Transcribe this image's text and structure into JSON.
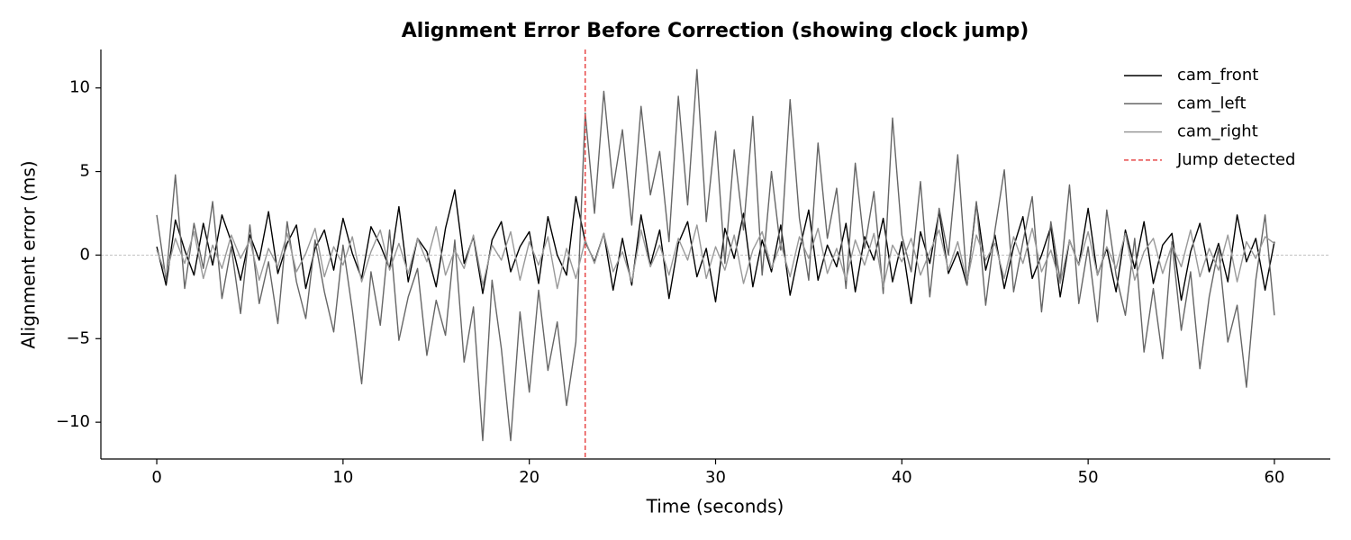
{
  "chart_data": {
    "type": "line",
    "title": "Alignment Error Before Correction (showing clock jump)",
    "x_label": "Time (seconds)",
    "y_label": "Alignment error (ms)",
    "x": [
      0,
      0.5,
      1,
      1.5,
      2,
      2.5,
      3,
      3.5,
      4,
      4.5,
      5,
      5.5,
      6,
      6.5,
      7,
      7.5,
      8,
      8.5,
      9,
      9.5,
      10,
      10.5,
      11,
      11.5,
      12,
      12.5,
      13,
      13.5,
      14,
      14.5,
      15,
      15.5,
      16,
      16.5,
      17,
      17.5,
      18,
      18.5,
      19,
      19.5,
      20,
      20.5,
      21,
      21.5,
      22,
      22.5,
      23,
      23.5,
      24,
      24.5,
      25,
      25.5,
      26,
      26.5,
      27,
      27.5,
      28,
      28.5,
      29,
      29.5,
      30,
      30.5,
      31,
      31.5,
      32,
      32.5,
      33,
      33.5,
      34,
      34.5,
      35,
      35.5,
      36,
      36.5,
      37,
      37.5,
      38,
      38.5,
      39,
      39.5,
      40,
      40.5,
      41,
      41.5,
      42,
      42.5,
      43,
      43.5,
      44,
      44.5,
      45,
      45.5,
      46,
      46.5,
      47,
      47.5,
      48,
      48.5,
      49,
      49.5,
      50,
      50.5,
      51,
      51.5,
      52,
      52.5,
      53,
      53.5,
      54,
      54.5,
      55,
      55.5,
      56,
      56.5,
      57,
      57.5,
      58,
      58.5,
      59,
      59.5,
      60
    ],
    "series": [
      {
        "name": "cam_front",
        "color": "#000000",
        "values": [
          0.5,
          -1.8,
          2.1,
          0.3,
          -1.2,
          1.9,
          -0.6,
          2.4,
          0.8,
          -1.5,
          1.2,
          -0.3,
          2.6,
          -1.1,
          0.7,
          1.8,
          -2.0,
          0.4,
          1.5,
          -0.9,
          2.2,
          0.1,
          -1.4,
          1.7,
          0.6,
          -0.8,
          2.9,
          -1.6,
          1.0,
          0.2,
          -1.9,
          1.6,
          3.9,
          -0.5,
          1.1,
          -2.3,
          0.9,
          2.0,
          -1.0,
          0.5,
          1.4,
          -1.7,
          2.3,
          0.0,
          -1.2,
          3.5,
          0.8,
          -0.4,
          1.3,
          -2.1,
          1.0,
          -1.8,
          2.4,
          -0.6,
          1.5,
          -2.6,
          0.7,
          2.0,
          -1.3,
          0.4,
          -2.8,
          1.6,
          -0.2,
          2.5,
          -1.9,
          0.9,
          -1.0,
          1.8,
          -2.4,
          0.3,
          2.7,
          -1.5,
          0.6,
          -0.7,
          1.9,
          -2.2,
          1.1,
          -0.3,
          2.2,
          -1.6,
          0.8,
          -2.9,
          1.4,
          -0.5,
          2.6,
          -1.1,
          0.2,
          -1.8,
          3.1,
          -0.9,
          1.2,
          -2.0,
          0.5,
          2.3,
          -1.4,
          0.0,
          1.7,
          -2.5,
          0.9,
          -0.6,
          2.8,
          -1.2,
          0.4,
          -2.2,
          1.5,
          -0.8,
          2.0,
          -1.7,
          0.6,
          1.3,
          -2.7,
          0.2,
          1.9,
          -1.0,
          0.7,
          -1.6,
          2.4,
          -0.4,
          1.0,
          -2.1,
          0.8
        ]
      },
      {
        "name": "cam_left",
        "color": "#666666",
        "values": [
          2.4,
          -1.5,
          4.8,
          -2.0,
          1.9,
          -0.8,
          3.2,
          -2.6,
          0.5,
          -3.5,
          1.8,
          -2.9,
          -0.4,
          -4.1,
          2.0,
          -1.6,
          -3.8,
          0.9,
          -2.2,
          -4.6,
          0.6,
          -3.3,
          -7.7,
          -1.0,
          -4.2,
          1.5,
          -5.1,
          -2.5,
          -0.8,
          -6.0,
          -2.7,
          -4.8,
          0.9,
          -6.4,
          -3.1,
          -11.1,
          -1.5,
          -5.6,
          -11.1,
          -3.4,
          -8.2,
          -2.1,
          -6.9,
          -4.0,
          -9.0,
          -5.2,
          8.5,
          2.5,
          9.8,
          4.0,
          7.5,
          1.8,
          8.9,
          3.6,
          6.2,
          0.8,
          9.5,
          3.0,
          11.1,
          2.0,
          7.4,
          -0.5,
          6.3,
          1.5,
          8.3,
          -1.2,
          5.0,
          0.3,
          9.3,
          2.2,
          -1.5,
          6.7,
          1.0,
          4.0,
          -2.0,
          5.5,
          0.4,
          3.8,
          -2.3,
          8.2,
          1.2,
          -1.0,
          4.4,
          -2.5,
          2.8,
          0.0,
          6.0,
          -1.8,
          3.2,
          -3.0,
          1.5,
          5.1,
          -2.2,
          0.8,
          3.5,
          -3.4,
          2.0,
          -1.5,
          4.2,
          -2.9,
          0.5,
          -4.0,
          2.7,
          -1.2,
          -3.6,
          1.0,
          -5.8,
          -2.0,
          -6.2,
          0.8,
          -4.5,
          -1.0,
          -6.8,
          -2.5,
          0.4,
          -5.2,
          -3.0,
          -7.9,
          -1.5,
          2.4,
          -3.6
        ]
      },
      {
        "name": "cam_right",
        "color": "#999999",
        "values": [
          0.3,
          -1.2,
          1.0,
          -0.5,
          1.4,
          -1.4,
          0.6,
          -0.8,
          1.2,
          -0.2,
          0.9,
          -1.5,
          0.4,
          -0.7,
          1.3,
          -1.0,
          0.1,
          1.6,
          -1.3,
          0.5,
          -0.6,
          1.1,
          -1.6,
          0.2,
          1.5,
          -0.9,
          0.7,
          -1.1,
          1.0,
          -0.4,
          1.7,
          -1.2,
          0.3,
          -0.8,
          1.2,
          -1.8,
          0.6,
          -0.3,
          1.4,
          -1.5,
          0.8,
          -0.6,
          1.1,
          -2.0,
          0.4,
          -1.4,
          0.9,
          -0.5,
          1.3,
          -1.0,
          0.2,
          -1.6,
          1.5,
          -0.7,
          0.6,
          -1.2,
          1.0,
          -0.3,
          1.8,
          -1.4,
          0.5,
          -0.9,
          1.2,
          -1.7,
          0.3,
          1.4,
          -0.8,
          0.7,
          -1.3,
          1.1,
          -0.2,
          1.6,
          -1.1,
          0.4,
          -1.5,
          0.9,
          -0.6,
          1.3,
          -1.9,
          0.6,
          -0.4,
          1.0,
          -1.2,
          0.2,
          1.5,
          -0.9,
          0.8,
          -1.6,
          1.2,
          -0.3,
          0.7,
          -1.4,
          1.1,
          -0.5,
          1.6,
          -1.0,
          0.3,
          -1.7,
          0.9,
          -0.6,
          1.4,
          -1.2,
          0.5,
          -0.8,
          1.3,
          -1.5,
          0.2,
          1.0,
          -1.1,
          0.6,
          -0.7,
          1.5,
          -1.3,
          0.4,
          -0.9,
          1.2,
          -1.6,
          0.8,
          -0.2,
          1.1,
          0.7
        ]
      }
    ],
    "vline": {
      "name": "Jump detected",
      "x": 23,
      "color": "#e84a4a"
    },
    "hline": 0,
    "xlim": [
      -3,
      63
    ],
    "ylim": [
      -12.2,
      12.3
    ],
    "xticks": [
      0,
      10,
      20,
      30,
      40,
      50,
      60
    ],
    "yticks": [
      {
        "value": -10,
        "label": "−10"
      },
      {
        "value": -5,
        "label": "−5"
      },
      0,
      5,
      10
    ],
    "legend": "upper right"
  }
}
